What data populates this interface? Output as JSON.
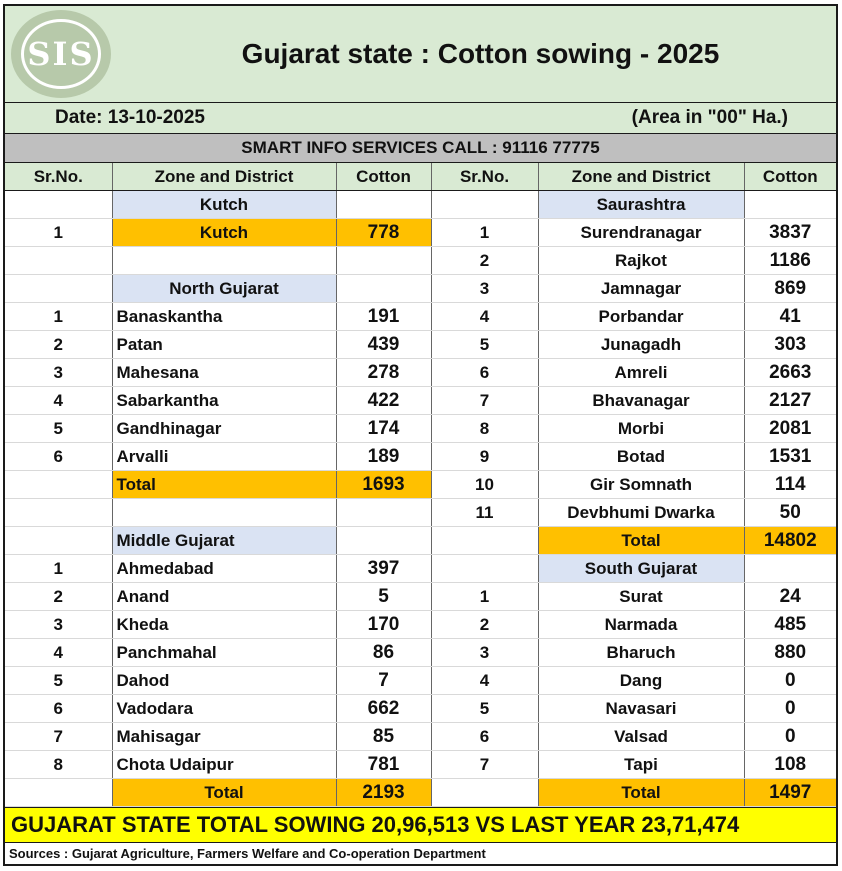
{
  "header": {
    "logo_text": "SIS",
    "title": "Gujarat state : Cotton sowing - 2025"
  },
  "info": {
    "date": "Date: 13-10-2025",
    "area_unit": "(Area in \"00\" Ha.)"
  },
  "banner": "SMART INFO SERVICES CALL : 91116 77775",
  "columns": {
    "sr_no": "Sr.No.",
    "zone_district": "Zone and District",
    "cotton": "Cotton"
  },
  "left": {
    "kutch": {
      "zone": "Kutch",
      "rows": [
        {
          "sr": "1",
          "name": "Kutch",
          "value": "778"
        }
      ]
    },
    "north": {
      "zone": "North Gujarat",
      "rows": [
        {
          "sr": "1",
          "name": "Banaskantha",
          "value": "191"
        },
        {
          "sr": "2",
          "name": "Patan",
          "value": "439"
        },
        {
          "sr": "3",
          "name": "Mahesana",
          "value": "278"
        },
        {
          "sr": "4",
          "name": "Sabarkantha",
          "value": "422"
        },
        {
          "sr": "5",
          "name": "Gandhinagar",
          "value": "174"
        },
        {
          "sr": "6",
          "name": "Arvalli",
          "value": "189"
        }
      ],
      "total_label": "Total",
      "total": "1693"
    },
    "middle": {
      "zone": "Middle Gujarat",
      "rows": [
        {
          "sr": "1",
          "name": "Ahmedabad",
          "value": "397"
        },
        {
          "sr": "2",
          "name": "Anand",
          "value": "5"
        },
        {
          "sr": "3",
          "name": "Kheda",
          "value": "170"
        },
        {
          "sr": "4",
          "name": "Panchmahal",
          "value": "86"
        },
        {
          "sr": "5",
          "name": "Dahod",
          "value": "7"
        },
        {
          "sr": "6",
          "name": "Vadodara",
          "value": "662"
        },
        {
          "sr": "7",
          "name": "Mahisagar",
          "value": "85"
        },
        {
          "sr": "8",
          "name": "Chota Udaipur",
          "value": "781"
        }
      ],
      "total_label": "Total",
      "total": "2193"
    }
  },
  "right": {
    "saurashtra": {
      "zone": "Saurashtra",
      "rows": [
        {
          "sr": "1",
          "name": "Surendranagar",
          "value": "3837"
        },
        {
          "sr": "2",
          "name": "Rajkot",
          "value": "1186"
        },
        {
          "sr": "3",
          "name": "Jamnagar",
          "value": "869"
        },
        {
          "sr": "4",
          "name": "Porbandar",
          "value": "41"
        },
        {
          "sr": "5",
          "name": "Junagadh",
          "value": "303"
        },
        {
          "sr": "6",
          "name": "Amreli",
          "value": "2663"
        },
        {
          "sr": "7",
          "name": "Bhavanagar",
          "value": "2127"
        },
        {
          "sr": "8",
          "name": "Morbi",
          "value": "2081"
        },
        {
          "sr": "9",
          "name": "Botad",
          "value": "1531"
        },
        {
          "sr": "10",
          "name": "Gir Somnath",
          "value": "114"
        },
        {
          "sr": "11",
          "name": "Devbhumi Dwarka",
          "value": "50"
        }
      ],
      "total_label": "Total",
      "total": "14802"
    },
    "south": {
      "zone": "South Gujarat",
      "rows": [
        {
          "sr": "1",
          "name": "Surat",
          "value": "24"
        },
        {
          "sr": "2",
          "name": "Narmada",
          "value": "485"
        },
        {
          "sr": "3",
          "name": "Bharuch",
          "value": "880"
        },
        {
          "sr": "4",
          "name": "Dang",
          "value": "0"
        },
        {
          "sr": "5",
          "name": "Navasari",
          "value": "0"
        },
        {
          "sr": "6",
          "name": "Valsad",
          "value": "0"
        },
        {
          "sr": "7",
          "name": "Tapi",
          "value": "108"
        }
      ],
      "total_label": "Total",
      "total": "1497"
    }
  },
  "footer": {
    "summary": "GUJARAT STATE TOTAL SOWING 20,96,513 VS LAST YEAR 23,71,474",
    "source": "Sources : Gujarat Agriculture, Farmers Welfare and Co-operation Department"
  },
  "colors": {
    "header_bg": "#d9ead3",
    "zone_bg": "#dae3f3",
    "highlight": "#ffc000",
    "summary_bg": "#ffff00",
    "banner_bg": "#bfbfbf"
  }
}
